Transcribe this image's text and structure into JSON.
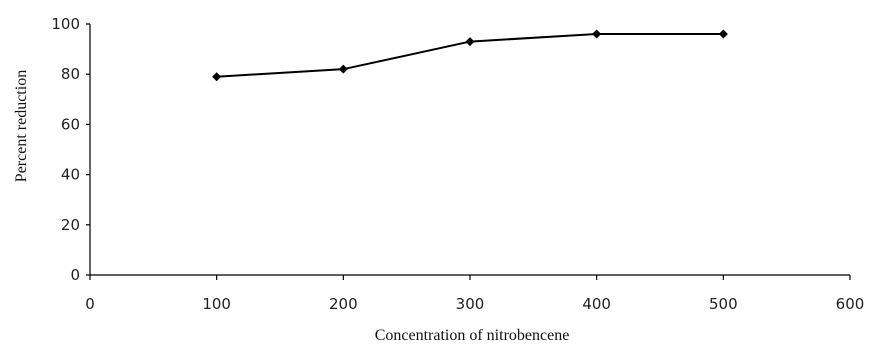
{
  "chart_data": {
    "type": "line",
    "xlabel": "Concentration of nitrobencene",
    "ylabel": "Percent reduction",
    "xlim": [
      0,
      600
    ],
    "ylim": [
      0,
      100
    ],
    "xticks": [
      "0",
      "100",
      "200",
      "300",
      "400",
      "500",
      "600"
    ],
    "yticks": [
      "0",
      "20",
      "40",
      "60",
      "80",
      "100"
    ],
    "series": [
      {
        "x": [
          100,
          200,
          300,
          400,
          500
        ],
        "values": [
          79,
          82,
          93,
          96,
          96
        ],
        "marker": "diamond",
        "color": "#000000"
      }
    ],
    "grid": false,
    "legend": "none"
  }
}
